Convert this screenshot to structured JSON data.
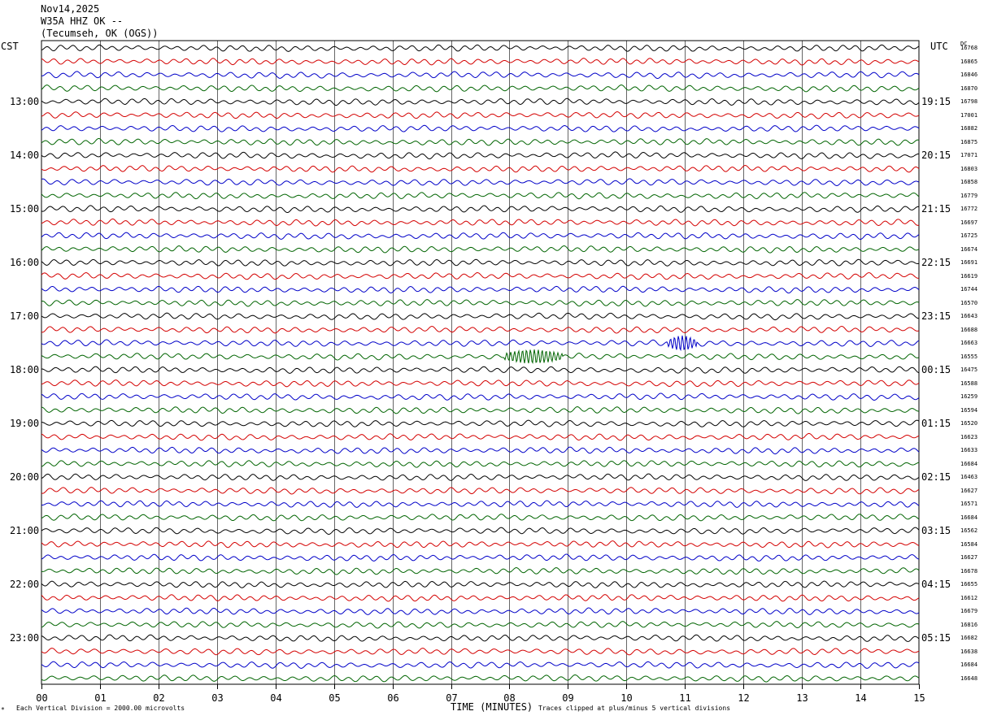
{
  "header": {
    "date": "Nov14,2025",
    "station": "W35A HHZ OK --",
    "location": "(Tecumseh, OK (OGS))"
  },
  "left_label": "CST",
  "right_label": "UTC",
  "dc_label": "DC",
  "colors": [
    "#000000",
    "#d40000",
    "#0000c8",
    "#006400"
  ],
  "chart_data": {
    "type": "line",
    "xlabel": "TIME (MINUTES)",
    "x_ticks": [
      "00",
      "01",
      "02",
      "03",
      "04",
      "05",
      "06",
      "07",
      "08",
      "09",
      "10",
      "11",
      "12",
      "13",
      "14",
      "15"
    ],
    "xlim": [
      0,
      15
    ],
    "row_count": 48,
    "cst_labels": [
      {
        "row": 4,
        "text": "13:00"
      },
      {
        "row": 8,
        "text": "14:00"
      },
      {
        "row": 12,
        "text": "15:00"
      },
      {
        "row": 16,
        "text": "16:00"
      },
      {
        "row": 20,
        "text": "17:00"
      },
      {
        "row": 24,
        "text": "18:00"
      },
      {
        "row": 28,
        "text": "19:00"
      },
      {
        "row": 32,
        "text": "20:00"
      },
      {
        "row": 36,
        "text": "21:00"
      },
      {
        "row": 40,
        "text": "22:00"
      },
      {
        "row": 44,
        "text": "23:00"
      }
    ],
    "utc_labels": [
      {
        "row": 4,
        "text": "19:15"
      },
      {
        "row": 8,
        "text": "20:15"
      },
      {
        "row": 12,
        "text": "21:15"
      },
      {
        "row": 16,
        "text": "22:15"
      },
      {
        "row": 20,
        "text": "23:15"
      },
      {
        "row": 24,
        "text": "00:15"
      },
      {
        "row": 28,
        "text": "01:15"
      },
      {
        "row": 32,
        "text": "02:15"
      },
      {
        "row": 36,
        "text": "03:15"
      },
      {
        "row": 40,
        "text": "04:15"
      },
      {
        "row": 44,
        "text": "05:15"
      }
    ],
    "dc_offsets": [
      "16768",
      "16865",
      "16846",
      "16870",
      "16798",
      "17001",
      "16882",
      "16875",
      "17071",
      "16803",
      "16858",
      "16779",
      "16772",
      "16697",
      "16725",
      "16674",
      "16691",
      "16619",
      "16744",
      "16570",
      "16643",
      "16688",
      "16663",
      "16555",
      "16475",
      "16588",
      "16259",
      "16594",
      "16520",
      "16623",
      "16633",
      "16684",
      "16463",
      "16627",
      "16571",
      "16684",
      "16562",
      "16584",
      "16627",
      "16678",
      "16655",
      "16612",
      "16679",
      "16816",
      "16682",
      "16638",
      "16684",
      "16648"
    ],
    "events": [
      {
        "row": 22,
        "minute_start": 10.7,
        "minute_end": 11.2,
        "amplitude": 1.6
      },
      {
        "row": 23,
        "minute_start": 7.9,
        "minute_end": 8.9,
        "amplitude": 1.4
      }
    ]
  },
  "footer": {
    "scale": "Each Vertical Division = 2000.00 microvolts",
    "clip": "Traces clipped at plus/minus 5 vertical divisions",
    "mark": "*"
  }
}
